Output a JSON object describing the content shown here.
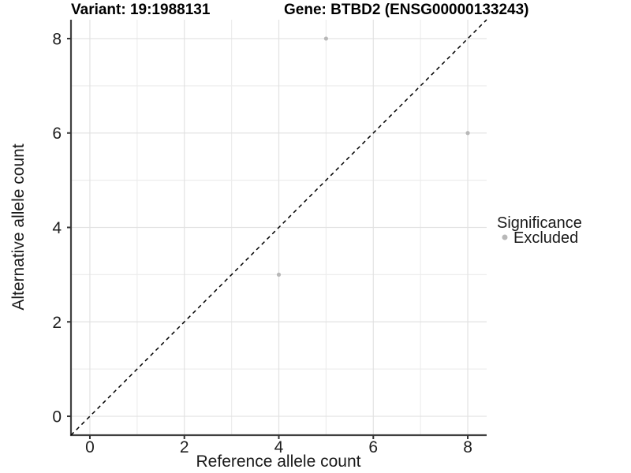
{
  "chart_data": {
    "type": "scatter",
    "title_left": "Variant: 19:1988131",
    "title_right": "Gene: BTBD2 (ENSG00000133243)",
    "xlabel": "Reference allele count",
    "ylabel": "Alternative allele count",
    "xlim": [
      -0.4,
      8.4
    ],
    "ylim": [
      -0.4,
      8.4
    ],
    "xticks": [
      0,
      2,
      4,
      6,
      8
    ],
    "yticks": [
      0,
      2,
      4,
      6,
      8
    ],
    "minor_xticks": [
      1,
      3,
      5,
      7
    ],
    "minor_yticks": [
      1,
      3,
      5,
      7
    ],
    "grid": true,
    "series": [
      {
        "name": "Excluded",
        "color": "#b8b8b8",
        "points": [
          [
            5,
            8
          ],
          [
            8,
            6
          ],
          [
            4,
            3
          ]
        ]
      }
    ],
    "reference_line": {
      "type": "identity",
      "style": "dashed",
      "from": [
        -0.4,
        -0.4
      ],
      "to": [
        8.4,
        8.4
      ],
      "color": "#000000"
    },
    "legend": {
      "title": "Significance",
      "position": "right",
      "entries": [
        {
          "label": "Excluded",
          "color": "#b8b8b8"
        }
      ]
    }
  },
  "colors": {
    "background": "#ffffff",
    "grid_major": "#e2e2e2",
    "grid_minor": "#ededed",
    "axis_line": "#404040",
    "tick_mark": "#333333",
    "point": "#b8b8b8"
  }
}
